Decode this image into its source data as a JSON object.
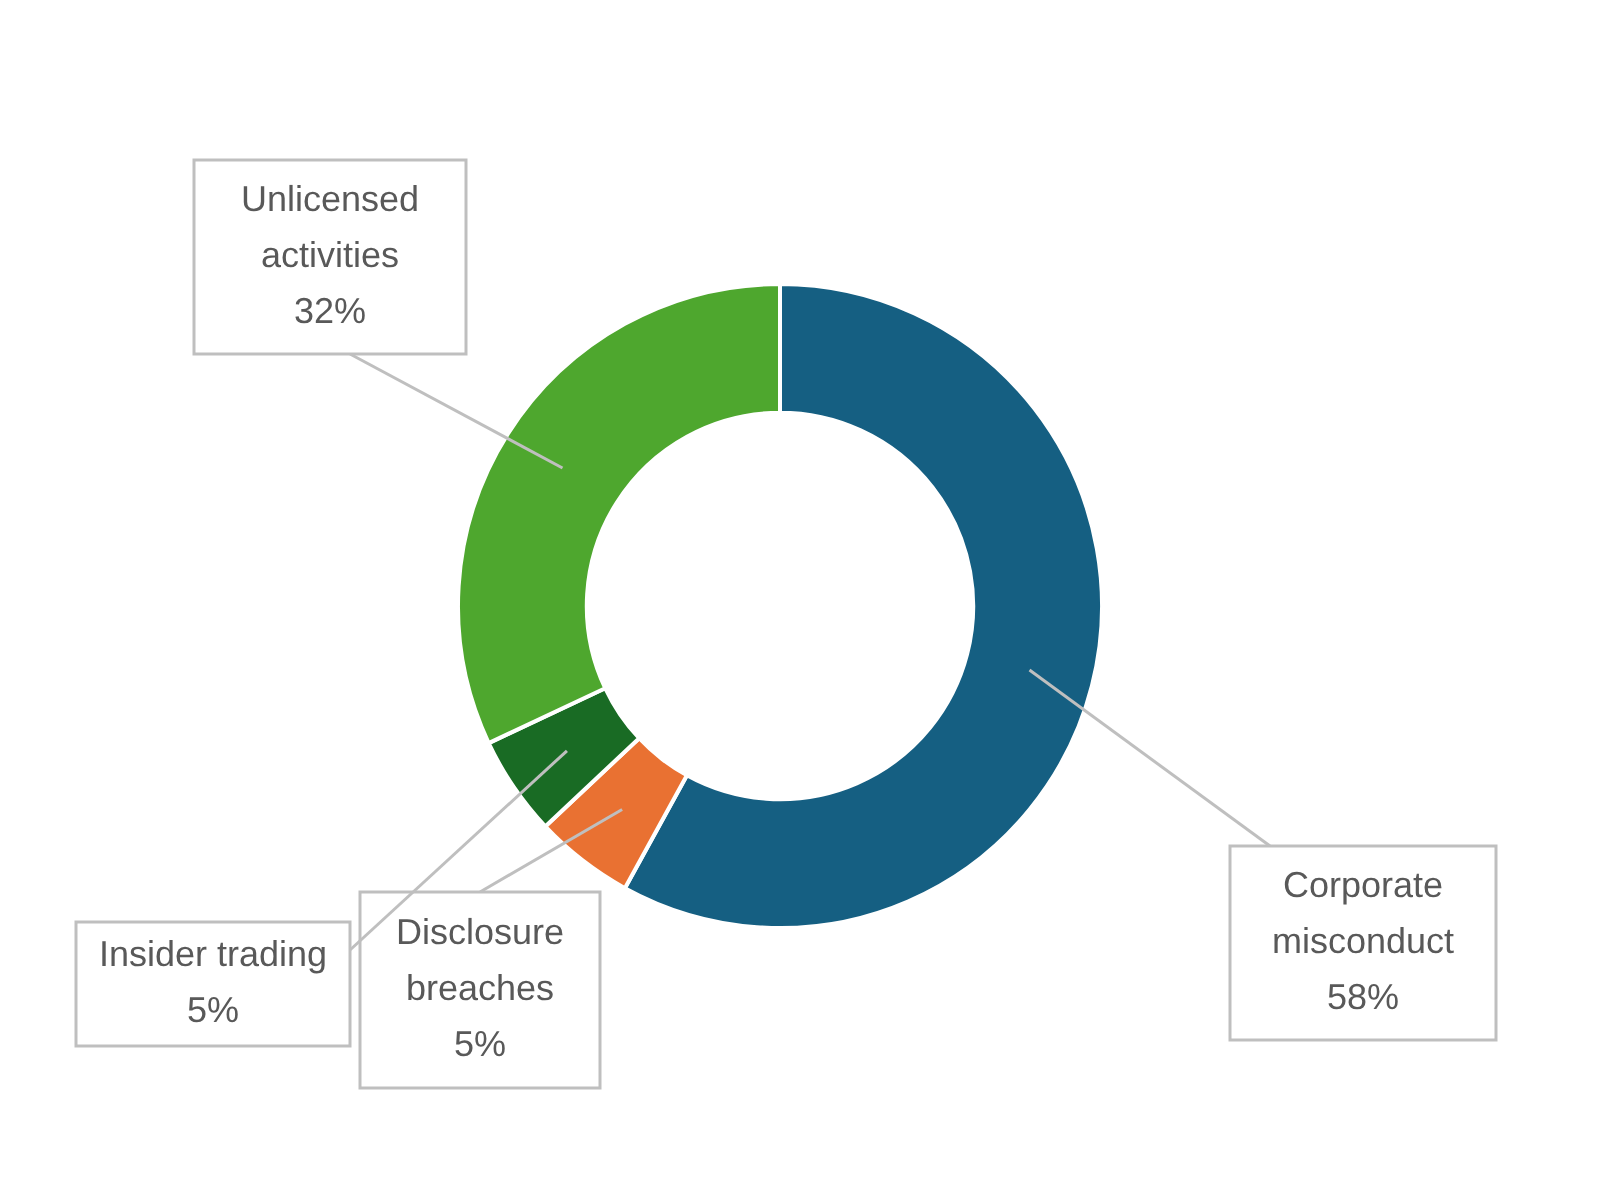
{
  "chart_data": {
    "type": "donut",
    "categories": [
      "Corporate misconduct",
      "Disclosure breaches",
      "Insider trading",
      "Unlicensed activities"
    ],
    "values": [
      58,
      5,
      5,
      32
    ],
    "colors": [
      "#155f82",
      "#e97132",
      "#196b24",
      "#4ea72e"
    ],
    "value_labels": [
      "58%",
      "5%",
      "5%",
      "32%"
    ],
    "legend": false
  }
}
